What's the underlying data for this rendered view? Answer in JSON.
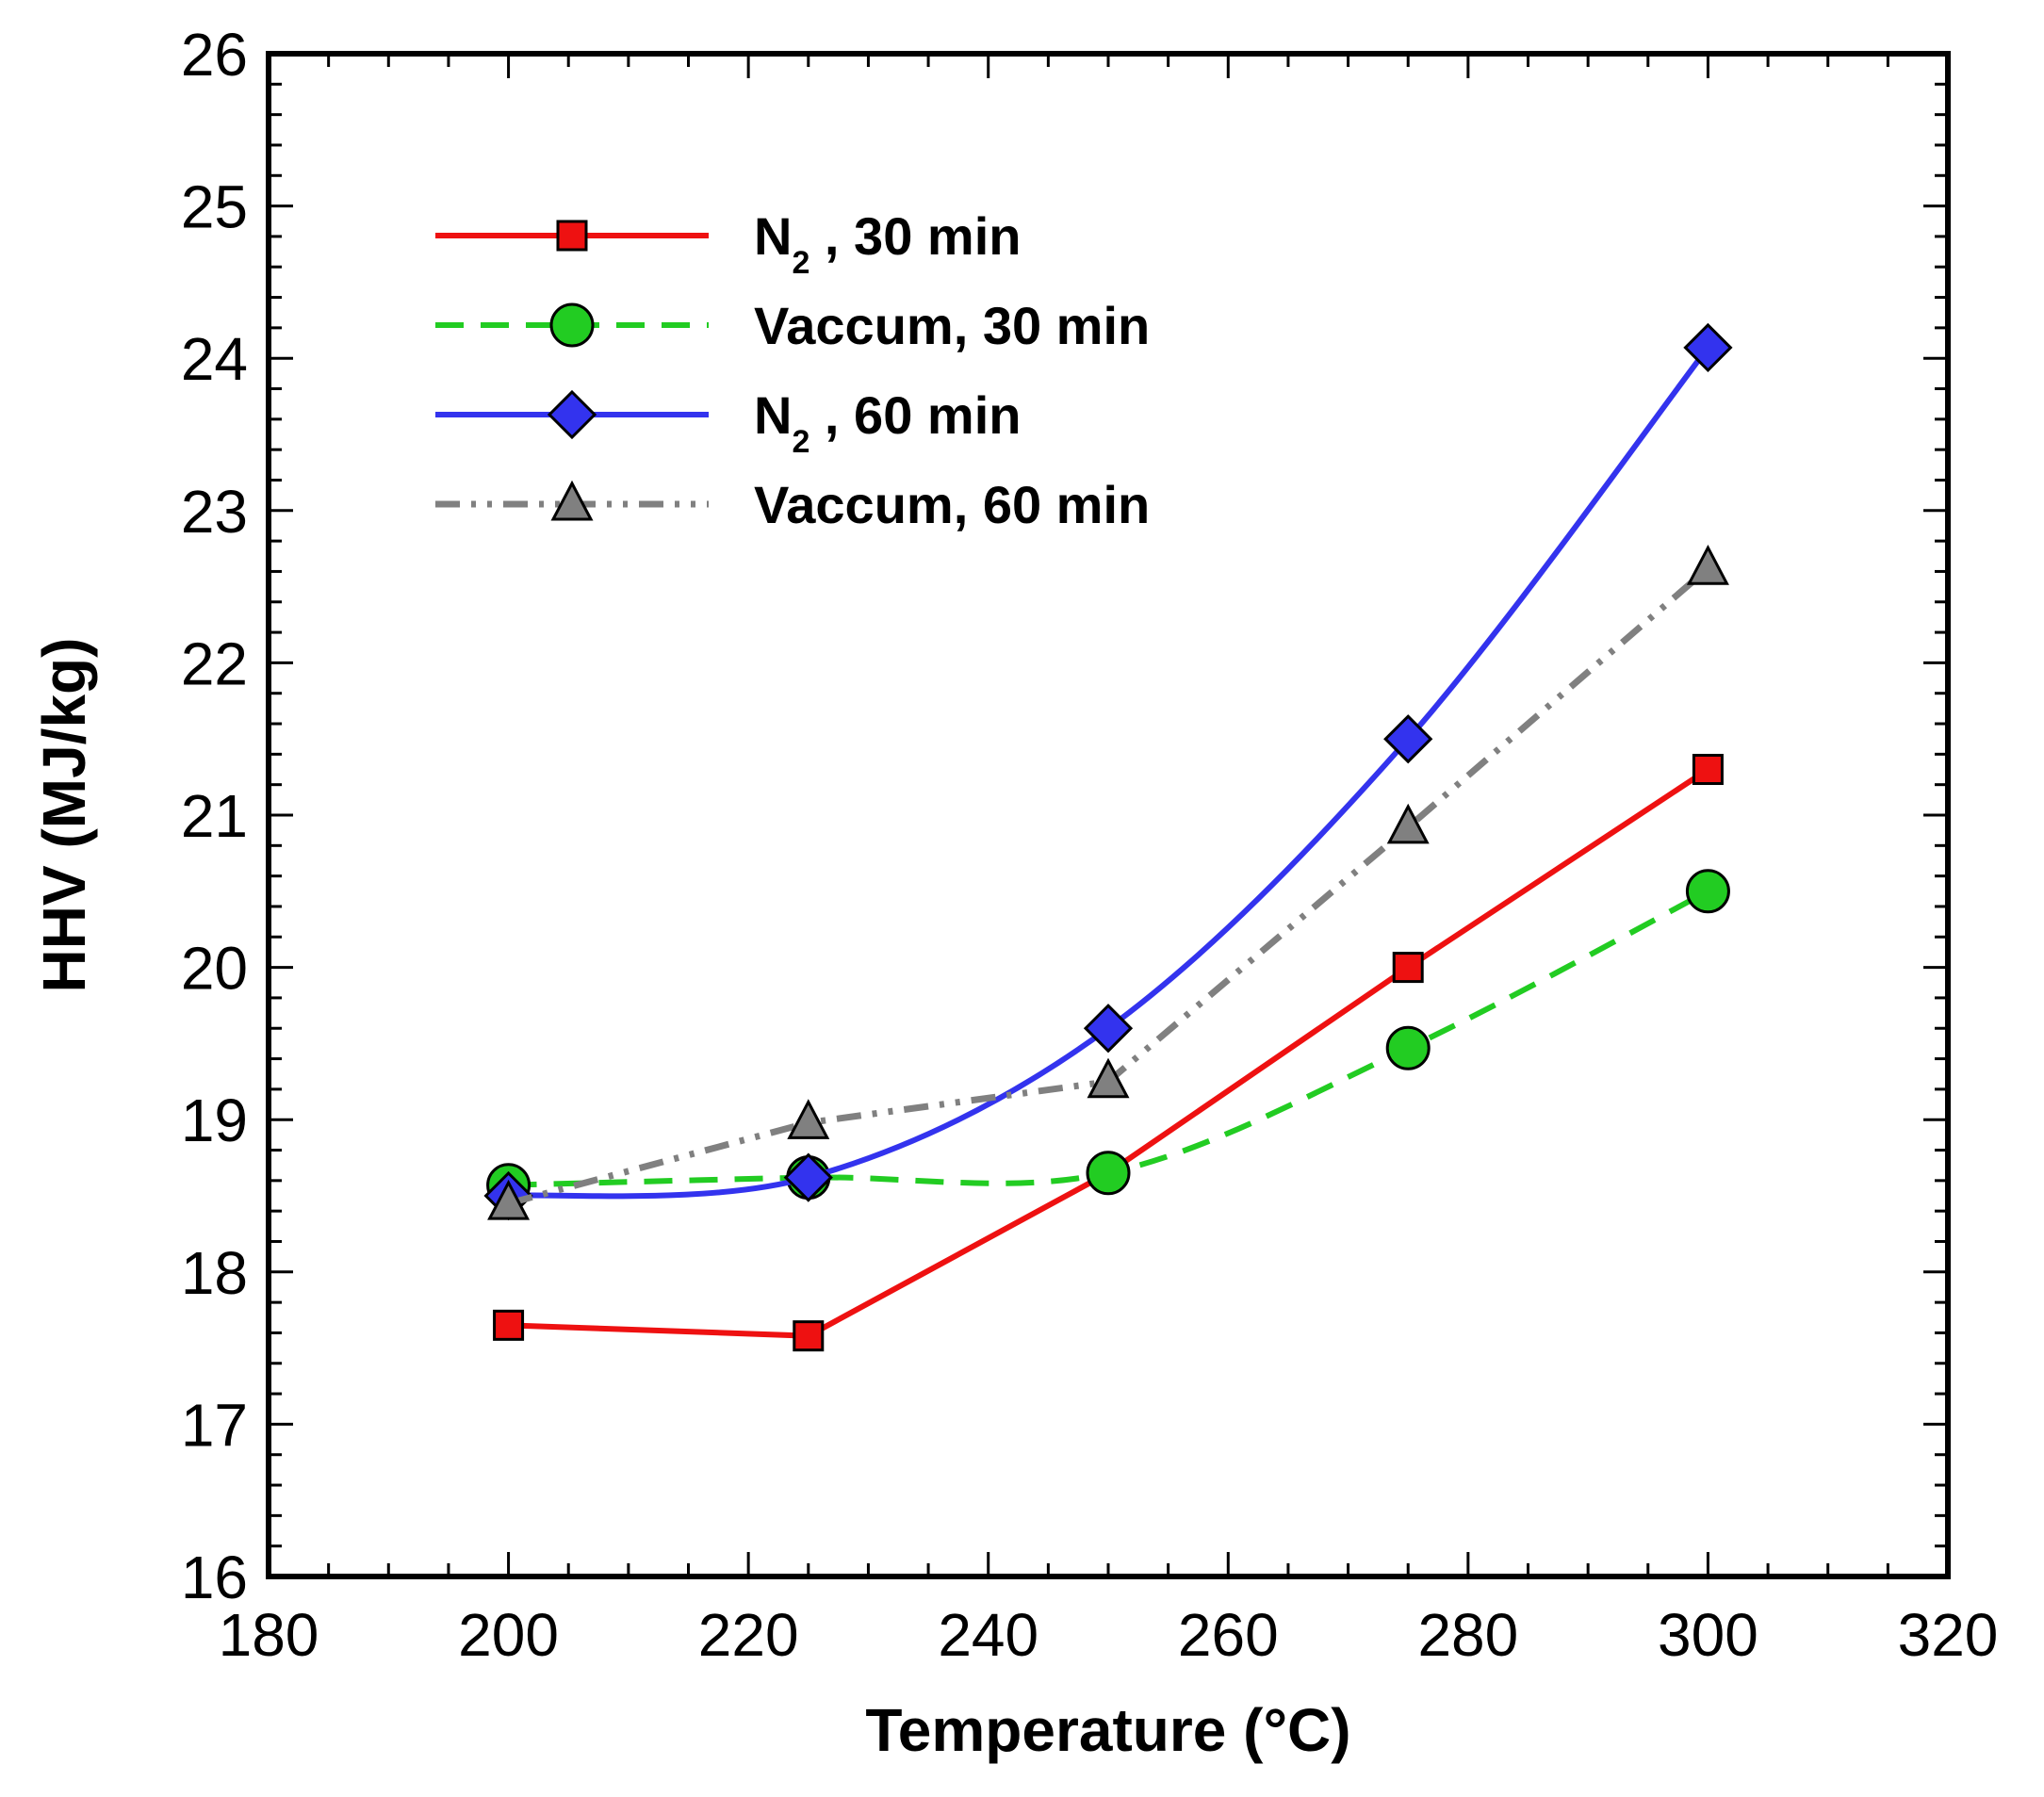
{
  "chart_data": {
    "type": "line",
    "title": "",
    "xlabel": "Temperature (°C)",
    "ylabel": "HHV (MJ/kg)",
    "xlim": [
      180,
      320
    ],
    "ylim": [
      16,
      26
    ],
    "x_major_ticks": [
      180,
      200,
      220,
      240,
      260,
      280,
      300,
      320
    ],
    "x_tick_labels": [
      "180",
      "200",
      "220",
      "240",
      "260",
      "280",
      "300",
      "320"
    ],
    "y_major_ticks": [
      16,
      17,
      18,
      19,
      20,
      21,
      22,
      23,
      24,
      25,
      26
    ],
    "y_tick_labels": [
      "16",
      "17",
      "18",
      "19",
      "20",
      "21",
      "22",
      "23",
      "24",
      "25",
      "26"
    ],
    "grid": false,
    "legend_position": "top-left",
    "x": [
      200,
      225,
      250,
      275,
      300
    ],
    "series": [
      {
        "name": "N2 , 30 min",
        "label_main": "N",
        "label_sub": "2",
        "label_rest": " , 30 min",
        "marker": "square",
        "color": "#ee1111",
        "dash": "solid",
        "values": [
          17.65,
          17.58,
          18.65,
          20.0,
          21.3
        ]
      },
      {
        "name": "Vaccum, 30 min",
        "label_main": "Vaccum, 30 min",
        "label_sub": "",
        "label_rest": "",
        "marker": "circle",
        "color": "#22cc22",
        "dash": "dashed",
        "values": [
          18.57,
          18.62,
          18.65,
          19.47,
          20.5
        ]
      },
      {
        "name": "N2 , 60 min",
        "label_main": "N",
        "label_sub": "2",
        "label_rest": " , 60 min",
        "marker": "diamond",
        "color": "#3333ee",
        "dash": "solid",
        "values": [
          18.5,
          18.62,
          19.6,
          21.5,
          24.07
        ]
      },
      {
        "name": "Vaccum, 60 min",
        "label_main": "Vaccum, 60 min",
        "label_sub": "",
        "label_rest": "",
        "marker": "triangle",
        "color": "#808080",
        "dash": "dashdotdot",
        "values": [
          18.45,
          18.98,
          19.25,
          20.92,
          22.62
        ]
      }
    ]
  }
}
